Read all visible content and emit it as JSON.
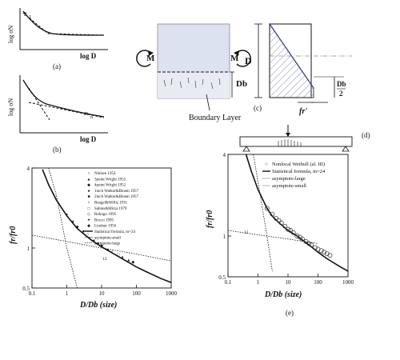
{
  "panel_a": {
    "label": "(a)",
    "ylabel": "log σN",
    "xlabel": "log D",
    "slope": "2",
    "slope_den": "1"
  },
  "panel_b": {
    "label": "(b)",
    "ylabel": "log σN",
    "xlabel": "log D",
    "m_label": "m",
    "n_label": "n"
  },
  "panel_c": {
    "label": "(c)",
    "M_left": "M",
    "M_right": "M",
    "D_label": "D",
    "Db_label": "Db",
    "boundary_label": "Boundary Layer",
    "Db2_num": "Db",
    "Db2_den": "2",
    "fr_label": "fr'"
  },
  "panel_d": {
    "label": "(d)"
  },
  "panel_e": {
    "label": "(e)"
  },
  "chart_left": {
    "ylabel": "fr/fr0",
    "xlabel": "D/Db (size)",
    "yticks": [
      "0.5",
      "1",
      "4"
    ],
    "xticks": [
      "0.1",
      "1",
      "10",
      "100",
      "1000"
    ],
    "slope_text": "12",
    "legend": [
      "Nielsen 1954",
      "3point Wright 1952",
      "4point Wright 1952",
      "1inch Walker&Bloem 1957",
      "2inch Walker&Bloem 1957",
      "Reagel&Willis 1931",
      "Sabnis&Mirza 1979",
      "Rokugo 1995",
      "Rocco 1995",
      "Lindner 1956",
      "Statistical formula, m=24",
      "asymptote-small",
      "asymptote-large"
    ]
  },
  "chart_right": {
    "ylabel": "fr/fr0",
    "xlabel": "D/Db (size)",
    "yticks": [
      "0.5",
      "1",
      "4"
    ],
    "xticks": [
      "0.1",
      "1",
      "10",
      "100",
      "1000"
    ],
    "slope_text": "12",
    "legend": [
      "Nonlocal Weibull (al. III)",
      "Statistical formula, m=24",
      "asymptote-large",
      "asymptote-small"
    ]
  },
  "chart_data": [
    {
      "type": "scatter",
      "xlabel": "D/Db (size)",
      "ylabel": "fr/fr0",
      "xscale": "log",
      "yscale": "log",
      "xlim": [
        0.1,
        1000
      ],
      "ylim": [
        0.5,
        4
      ],
      "series": [
        {
          "name": "Statistical formula, m=24",
          "x": [
            0.2,
            0.3,
            0.5,
            1,
            2,
            5,
            10,
            20,
            50,
            100,
            200,
            500,
            1000
          ],
          "y": [
            3.9,
            3.0,
            2.3,
            1.75,
            1.4,
            1.15,
            1.02,
            0.92,
            0.8,
            0.72,
            0.66,
            0.59,
            0.55
          ]
        },
        {
          "name": "asymptote-small",
          "x": [
            0.3,
            0.5,
            1,
            2
          ],
          "y": [
            4,
            2.5,
            1.0,
            0.5
          ]
        },
        {
          "name": "asymptote-large",
          "x": [
            0.1,
            1,
            10,
            100,
            1000
          ],
          "y": [
            1.25,
            1.12,
            1.0,
            0.9,
            0.8
          ]
        },
        {
          "name": "data",
          "x": [
            1,
            1.5,
            2,
            3,
            4,
            5,
            6,
            8,
            10,
            15,
            20,
            30,
            40,
            60,
            80
          ],
          "y": [
            1.8,
            1.6,
            1.45,
            1.35,
            1.28,
            1.2,
            1.15,
            1.1,
            1.05,
            0.98,
            0.95,
            0.9,
            0.86,
            0.82,
            0.79
          ]
        }
      ]
    },
    {
      "type": "scatter",
      "xlabel": "D/Db (size)",
      "ylabel": "fr/fr0",
      "xscale": "log",
      "yscale": "log",
      "xlim": [
        0.1,
        1000
      ],
      "ylim": [
        0.5,
        4
      ],
      "series": [
        {
          "name": "Statistical formula, m=24",
          "x": [
            0.4,
            0.6,
            1,
            2,
            3,
            5,
            10,
            20,
            50,
            100,
            200,
            500,
            1000
          ],
          "y": [
            4,
            3.0,
            2.2,
            1.6,
            1.4,
            1.25,
            1.1,
            1.0,
            0.86,
            0.76,
            0.68,
            0.6,
            0.55
          ]
        },
        {
          "name": "asymptote-large",
          "x": [
            0.1,
            1,
            10,
            100
          ],
          "y": [
            1.1,
            1.02,
            0.95,
            0.88
          ]
        },
        {
          "name": "asymptote-small",
          "x": [
            0.7,
            1,
            2,
            3
          ],
          "y": [
            4,
            2.5,
            1.0,
            0.55
          ]
        },
        {
          "name": "Nonlocal Weibull (al. III)",
          "x": [
            2,
            3,
            4,
            5,
            6,
            8,
            10,
            12,
            15,
            20,
            25,
            30,
            40,
            50,
            60,
            80,
            100,
            130,
            160,
            200,
            250
          ],
          "y": [
            1.6,
            1.45,
            1.35,
            1.3,
            1.25,
            1.18,
            1.12,
            1.1,
            1.06,
            1.0,
            0.98,
            0.95,
            0.91,
            0.88,
            0.86,
            0.82,
            0.8,
            0.78,
            0.76,
            0.74,
            0.72
          ]
        }
      ]
    }
  ]
}
